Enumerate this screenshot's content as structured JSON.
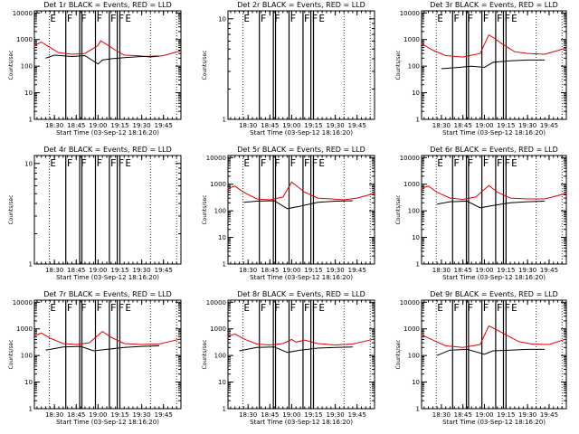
{
  "chart_data": {
    "type": "line",
    "x_tick_labels": [
      "18:30",
      "18:45",
      "19:00",
      "19:15",
      "19:30",
      "19:45"
    ],
    "x_ticks_hours": [
      18.5,
      18.75,
      19.0,
      19.25,
      19.5,
      19.75
    ],
    "xlim_hours": [
      18.27,
      19.95
    ],
    "xlabel": "Start Time (03-Sep-12 18:16:20)",
    "ylabel": "Counts/sec",
    "panels": [
      {
        "title": "Det 1r BLACK = Events, RED = LLD",
        "y_tick_labels": [
          "1",
          "10",
          "100",
          "1000",
          "10000"
        ],
        "ylim": [
          1,
          12000
        ],
        "event_markers": [
          "E",
          "F",
          "F",
          "F",
          "F",
          "F",
          "E"
        ],
        "lld": [
          [
            18.27,
            600
          ],
          [
            18.35,
            800
          ],
          [
            18.45,
            500
          ],
          [
            18.55,
            320
          ],
          [
            18.7,
            280
          ],
          [
            18.85,
            300
          ],
          [
            19.0,
            600
          ],
          [
            19.03,
            900
          ],
          [
            19.1,
            650
          ],
          [
            19.2,
            400
          ],
          [
            19.3,
            260
          ],
          [
            19.45,
            250
          ],
          [
            19.6,
            220
          ],
          [
            19.75,
            250
          ],
          [
            19.95,
            380
          ]
        ],
        "events": [
          [
            18.4,
            200
          ],
          [
            18.5,
            260
          ],
          [
            18.7,
            230
          ],
          [
            18.85,
            250
          ],
          [
            19.0,
            120
          ],
          [
            19.05,
            170
          ],
          [
            19.15,
            190
          ],
          [
            19.3,
            210
          ],
          [
            19.5,
            230
          ],
          [
            19.7,
            240
          ]
        ]
      },
      {
        "title": "Det 2r BLACK = Events, RED = LLD",
        "y_tick_labels": [
          "1",
          "10"
        ],
        "ylim": [
          1,
          12
        ],
        "event_markers": [
          "E",
          "F",
          "F",
          "F",
          "F",
          "F",
          "E"
        ],
        "lld": [],
        "events": []
      },
      {
        "title": "Det 3r BLACK = Events, RED = LLD",
        "y_tick_labels": [
          "1",
          "10",
          "100",
          "1000",
          "10000"
        ],
        "ylim": [
          1,
          12000
        ],
        "event_markers": [
          "E",
          "F",
          "F",
          "F",
          "F",
          "F",
          "E"
        ],
        "lld": [
          [
            18.27,
            700
          ],
          [
            18.4,
            400
          ],
          [
            18.55,
            250
          ],
          [
            18.75,
            220
          ],
          [
            18.95,
            300
          ],
          [
            19.05,
            1500
          ],
          [
            19.1,
            1200
          ],
          [
            19.2,
            700
          ],
          [
            19.35,
            350
          ],
          [
            19.5,
            300
          ],
          [
            19.7,
            280
          ],
          [
            19.95,
            480
          ]
        ],
        "events": [
          [
            18.5,
            80
          ],
          [
            18.7,
            90
          ],
          [
            18.85,
            100
          ],
          [
            19.0,
            90
          ],
          [
            19.1,
            140
          ],
          [
            19.3,
            160
          ],
          [
            19.5,
            170
          ],
          [
            19.7,
            170
          ]
        ]
      },
      {
        "title": "Det 4r BLACK = Events, RED = LLD",
        "y_tick_labels": [
          "1",
          "10"
        ],
        "ylim": [
          1,
          12
        ],
        "event_markers": [
          "E",
          "F",
          "F",
          "F",
          "F",
          "F",
          "E"
        ],
        "lld": [],
        "events": []
      },
      {
        "title": "Det 5r BLACK = Events, RED = LLD",
        "y_tick_labels": [
          "1",
          "10",
          "100",
          "1000",
          "10000"
        ],
        "ylim": [
          1,
          12000
        ],
        "event_markers": [
          "E",
          "F",
          "F",
          "F",
          "F",
          "F",
          "E"
        ],
        "lld": [
          [
            18.27,
            700
          ],
          [
            18.35,
            850
          ],
          [
            18.45,
            500
          ],
          [
            18.6,
            280
          ],
          [
            18.75,
            260
          ],
          [
            18.9,
            330
          ],
          [
            19.0,
            1200
          ],
          [
            19.05,
            900
          ],
          [
            19.15,
            500
          ],
          [
            19.3,
            300
          ],
          [
            19.45,
            280
          ],
          [
            19.6,
            260
          ],
          [
            19.75,
            300
          ],
          [
            19.95,
            450
          ]
        ],
        "events": [
          [
            18.45,
            210
          ],
          [
            18.6,
            230
          ],
          [
            18.8,
            240
          ],
          [
            18.95,
            120
          ],
          [
            19.1,
            150
          ],
          [
            19.3,
            210
          ],
          [
            19.5,
            230
          ],
          [
            19.7,
            240
          ]
        ]
      },
      {
        "title": "Det 6r BLACK = Events, RED = LLD",
        "y_tick_labels": [
          "1",
          "10",
          "100",
          "1000",
          "10000"
        ],
        "ylim": [
          1,
          12000
        ],
        "event_markers": [
          "E",
          "F",
          "F",
          "F",
          "F",
          "F",
          "E"
        ],
        "lld": [
          [
            18.27,
            700
          ],
          [
            18.35,
            850
          ],
          [
            18.45,
            500
          ],
          [
            18.6,
            300
          ],
          [
            18.75,
            270
          ],
          [
            18.9,
            330
          ],
          [
            19.05,
            900
          ],
          [
            19.15,
            500
          ],
          [
            19.3,
            300
          ],
          [
            19.5,
            280
          ],
          [
            19.7,
            280
          ],
          [
            19.95,
            450
          ]
        ],
        "events": [
          [
            18.45,
            180
          ],
          [
            18.6,
            220
          ],
          [
            18.8,
            230
          ],
          [
            18.95,
            130
          ],
          [
            19.1,
            160
          ],
          [
            19.3,
            200
          ],
          [
            19.5,
            220
          ],
          [
            19.7,
            230
          ]
        ]
      },
      {
        "title": "Det 7r BLACK = Events, RED = LLD",
        "y_tick_labels": [
          "1",
          "10",
          "100",
          "1000",
          "10000"
        ],
        "ylim": [
          1,
          12000
        ],
        "event_markers": [
          "E",
          "F",
          "F",
          "F",
          "F",
          "F",
          "E"
        ],
        "lld": [
          [
            18.27,
            550
          ],
          [
            18.35,
            700
          ],
          [
            18.45,
            450
          ],
          [
            18.6,
            280
          ],
          [
            18.75,
            260
          ],
          [
            18.9,
            300
          ],
          [
            19.05,
            800
          ],
          [
            19.15,
            480
          ],
          [
            19.3,
            280
          ],
          [
            19.5,
            260
          ],
          [
            19.7,
            270
          ],
          [
            19.95,
            420
          ]
        ],
        "events": [
          [
            18.4,
            160
          ],
          [
            18.6,
            210
          ],
          [
            18.8,
            220
          ],
          [
            18.95,
            150
          ],
          [
            19.1,
            170
          ],
          [
            19.3,
            200
          ],
          [
            19.5,
            220
          ],
          [
            19.7,
            230
          ]
        ]
      },
      {
        "title": "Det 8r BLACK = Events, RED = LLD",
        "y_tick_labels": [
          "1",
          "10",
          "100",
          "1000",
          "10000"
        ],
        "ylim": [
          1,
          12000
        ],
        "event_markers": [
          "E",
          "F",
          "F",
          "F",
          "F",
          "F",
          "E"
        ],
        "lld": [
          [
            18.27,
            520
          ],
          [
            18.35,
            650
          ],
          [
            18.45,
            420
          ],
          [
            18.6,
            270
          ],
          [
            18.75,
            250
          ],
          [
            18.9,
            280
          ],
          [
            19.0,
            400
          ],
          [
            19.05,
            320
          ],
          [
            19.15,
            380
          ],
          [
            19.3,
            280
          ],
          [
            19.5,
            250
          ],
          [
            19.7,
            270
          ],
          [
            19.95,
            420
          ]
        ],
        "events": [
          [
            18.4,
            150
          ],
          [
            18.6,
            200
          ],
          [
            18.8,
            210
          ],
          [
            18.95,
            130
          ],
          [
            19.1,
            160
          ],
          [
            19.3,
            190
          ],
          [
            19.5,
            200
          ],
          [
            19.7,
            210
          ]
        ]
      },
      {
        "title": "Det 9r BLACK = Events, RED = LLD",
        "y_tick_labels": [
          "1",
          "10",
          "100",
          "1000",
          "10000"
        ],
        "ylim": [
          1,
          12000
        ],
        "event_markers": [
          "E",
          "F",
          "F",
          "F",
          "F",
          "F",
          "E"
        ],
        "lld": [
          [
            18.27,
            600
          ],
          [
            18.4,
            380
          ],
          [
            18.55,
            230
          ],
          [
            18.75,
            200
          ],
          [
            18.95,
            260
          ],
          [
            19.05,
            1300
          ],
          [
            19.12,
            1000
          ],
          [
            19.25,
            600
          ],
          [
            19.4,
            330
          ],
          [
            19.55,
            270
          ],
          [
            19.75,
            260
          ],
          [
            19.95,
            420
          ]
        ],
        "events": [
          [
            18.45,
            100
          ],
          [
            18.6,
            160
          ],
          [
            18.8,
            170
          ],
          [
            19.0,
            110
          ],
          [
            19.1,
            150
          ],
          [
            19.3,
            160
          ],
          [
            19.5,
            170
          ],
          [
            19.7,
            170
          ]
        ]
      }
    ],
    "vertical_lines_hours": [
      {
        "h": 18.63,
        "style": "solid"
      },
      {
        "h": 18.79,
        "style": "solid"
      },
      {
        "h": 18.815,
        "style": "solid"
      },
      {
        "h": 18.97,
        "style": "solid"
      },
      {
        "h": 19.13,
        "style": "solid"
      },
      {
        "h": 19.22,
        "style": "solid"
      },
      {
        "h": 19.25,
        "style": "solid"
      },
      {
        "h": 18.44,
        "style": "dotted"
      },
      {
        "h": 19.6,
        "style": "dotted"
      },
      {
        "h": 19.9,
        "style": "dotted"
      }
    ],
    "event_marker_hours": [
      18.44,
      18.63,
      18.79,
      18.97,
      19.13,
      19.22,
      19.3
    ],
    "colors": {
      "events": "#000000",
      "lld": "#e00000"
    }
  }
}
